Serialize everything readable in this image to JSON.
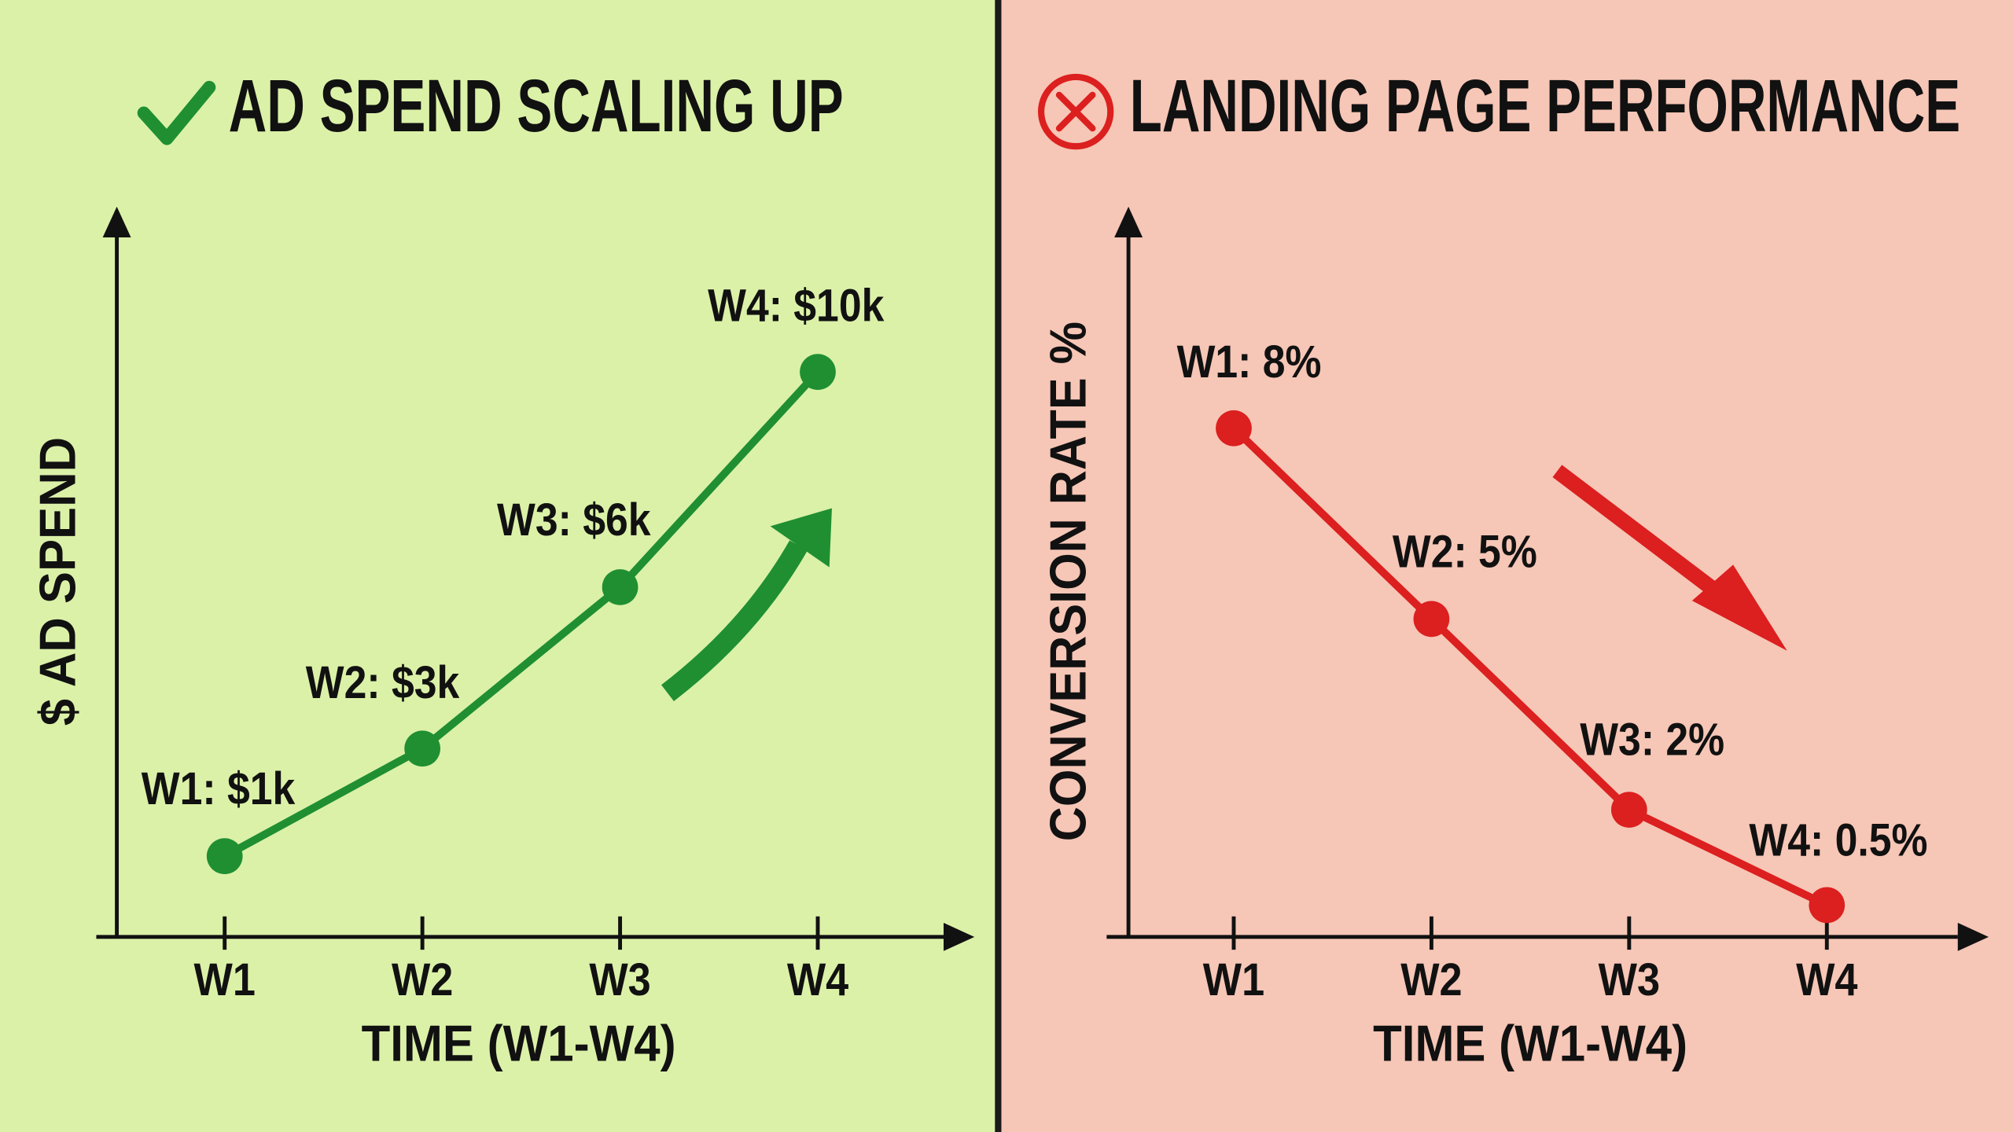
{
  "chart_data": [
    {
      "type": "line",
      "title": "AD SPEND SCALING UP",
      "y_label": "$ AD SPEND",
      "x_label": "TIME (W1-W4)",
      "categories": [
        "W1",
        "W2",
        "W3",
        "W4"
      ],
      "values": [
        1000,
        3000,
        6000,
        10000
      ],
      "value_labels": [
        "W1: $1k",
        "W2: $3k",
        "W3: $6k",
        "W4: $10k"
      ],
      "color": "#1f8f32",
      "ylim": [
        -500,
        12500
      ]
    },
    {
      "type": "line",
      "title": "LANDING PAGE PERFORMANCE",
      "y_label": "CONVERSION RATE %",
      "x_label": "TIME (W1-W4)",
      "categories": [
        "W1",
        "W2",
        "W3",
        "W4"
      ],
      "values": [
        8,
        5,
        2,
        0.5
      ],
      "value_labels": [
        "W1: 8%",
        "W2: 5%",
        "W3: 2%",
        "W4: 0.5%"
      ],
      "color": "#dc1f1f",
      "ylim": [
        0,
        11
      ]
    }
  ]
}
